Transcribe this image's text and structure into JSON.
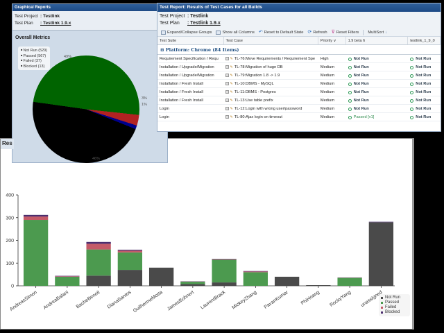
{
  "graphical_report": {
    "title": "Graphical Reports",
    "test_project_label": "Test Project",
    "test_project_value": ": Testlink",
    "test_plan_label": "Test Plan",
    "test_plan_value": ": Testlink 1.9.x",
    "section_title": "Overall Metrics",
    "legend": [
      {
        "label": "Not Run (529)",
        "color": "#000000"
      },
      {
        "label": "Passed (567)",
        "color": "#006400"
      },
      {
        "label": "Failed (37)",
        "color": "#b22222"
      },
      {
        "label": "Blocked (13)",
        "color": "#00008b"
      }
    ],
    "slice_labels": {
      "passed": "49%",
      "failed": "3%",
      "blocked": "1%",
      "notrun": "46%"
    }
  },
  "test_report": {
    "title": "Test Report: Results of Test Cases for all Builds",
    "test_project_label": "Test Project",
    "test_project_value": ": Testlink",
    "test_plan_label": "Test Plan",
    "test_plan_value": ": Testlink 1.9.x",
    "toolbar": {
      "expand": "Expand/Collapse Groups",
      "show_columns": "Show all Columns",
      "reset_default": "Reset to Default State",
      "refresh": "Refresh",
      "reset_filters": "Reset Filters",
      "multisort": "MultiSort"
    },
    "columns": {
      "suite": "Test Suite",
      "case": "Test Case",
      "priority": "Priority",
      "build1": "1.9 beta 6",
      "build2": "testlink_1_9_0"
    },
    "group": "Platform: Chrome (84 Items)",
    "rows": [
      {
        "suite": "Requirement Specification / Requ",
        "case": "TL-76:Move Requirements / Requirement Spe",
        "priority": "High",
        "b1": "Not Run",
        "b2": "Not Run"
      },
      {
        "suite": "Installation / Upgrade/Migration",
        "case": "TL-78:Migration of huge DB",
        "priority": "Medium",
        "b1": "Not Run",
        "b2": "Not Run"
      },
      {
        "suite": "Installation / Upgrade/Migration",
        "case": "TL-79:Migration 1.8 -> 1.9",
        "priority": "Medium",
        "b1": "Not Run",
        "b2": "Not Run"
      },
      {
        "suite": "Installation / Fresh Install",
        "case": "TL-10:DBMS - MySQL",
        "priority": "Medium",
        "b1": "Not Run",
        "b2": "Not Run"
      },
      {
        "suite": "Installation / Fresh Install",
        "case": "TL-11:DBMS - Postgres",
        "priority": "Medium",
        "b1": "Not Run",
        "b2": "Not Run"
      },
      {
        "suite": "Installation / Fresh Install",
        "case": "TL-13:Use table prefix",
        "priority": "Medium",
        "b1": "Not Run",
        "b2": "Not Run"
      },
      {
        "suite": "Login",
        "case": "TL-12:Login with wrong user/password",
        "priority": "Medium",
        "b1": "Not Run",
        "b2": "Not Run"
      },
      {
        "suite": "Login",
        "case": "TL-80:Ajax login on timeout",
        "priority": "Medium",
        "b1": "Passed [v1]",
        "b2": "Not Run"
      }
    ]
  },
  "results_chart": {
    "tab_title": "Res"
  },
  "chart_data": [
    {
      "type": "pie",
      "title": "Overall Metrics",
      "categories": [
        "Not Run",
        "Passed",
        "Failed",
        "Blocked"
      ],
      "values": [
        529,
        567,
        37,
        13
      ],
      "percent_labels": [
        "46%",
        "49%",
        "3%",
        "1%"
      ],
      "colors": [
        "#000000",
        "#006400",
        "#b22222",
        "#00008b"
      ],
      "legend_position": "top-left"
    },
    {
      "type": "bar",
      "stacked": true,
      "title": "Res",
      "xlabel": "",
      "ylabel": "",
      "ylim": [
        0,
        400
      ],
      "yticks": [
        0,
        100,
        200,
        300,
        400
      ],
      "categories": [
        "AndreasSimon",
        "AndreaBalani",
        "BacheBenoit",
        "DianaSantos",
        "GuilhermeMotta",
        "JamesBohnert",
        "LaurentBrack",
        "MickeyZhang",
        "PavanKumar",
        "PhiHoang",
        "RockyYang",
        "unassigned"
      ],
      "series": [
        {
          "name": "Not Run",
          "color": "#4a4a4a",
          "values": [
            0,
            0,
            45,
            70,
            80,
            8,
            15,
            0,
            40,
            3,
            0,
            280
          ]
        },
        {
          "name": "Passed",
          "color": "#4c9a4f",
          "values": [
            290,
            40,
            115,
            77,
            0,
            10,
            100,
            60,
            0,
            0,
            35,
            0
          ]
        },
        {
          "name": "Failed",
          "color": "#c45a68",
          "values": [
            15,
            2,
            25,
            8,
            0,
            1,
            2,
            3,
            0,
            0,
            1,
            0
          ]
        },
        {
          "name": "Blocked",
          "color": "#4b2d6e",
          "values": [
            7,
            2,
            8,
            4,
            0,
            1,
            2,
            2,
            0,
            0,
            1,
            2
          ]
        }
      ],
      "legend_position": "top-right",
      "grid": false
    }
  ]
}
